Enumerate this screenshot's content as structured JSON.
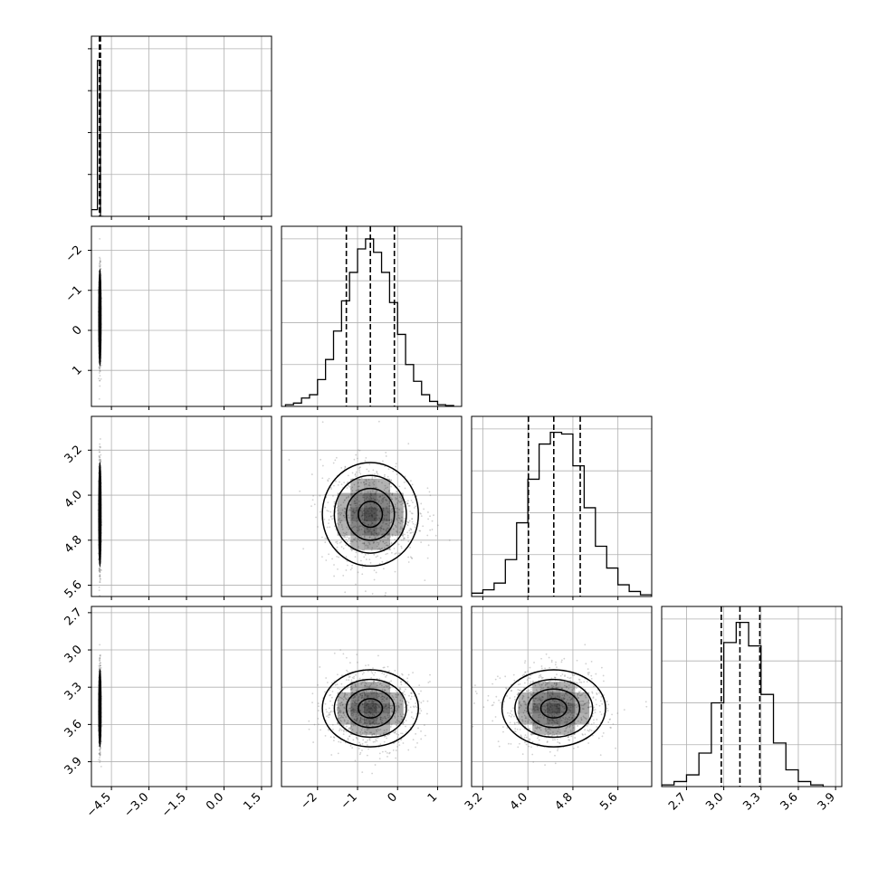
{
  "chart_data": {
    "type": "corner",
    "x_labels": [],
    "x_ticks": [
      [
        "−4.5",
        "−3.0",
        "−1.5",
        "0.0",
        "1.5"
      ],
      [
        "−2",
        "−1",
        "0",
        "1"
      ],
      [
        "3.2",
        "4.0",
        "4.8",
        "5.6"
      ],
      [
        "2.7",
        "3.0",
        "3.3",
        "3.6",
        "3.9"
      ]
    ],
    "y_ticks": [
      [],
      [
        "1",
        "0",
        "−1",
        "−2"
      ],
      [
        "5.6",
        "4.8",
        "4.0",
        "3.2"
      ],
      [
        "3.9",
        "3.6",
        "3.3",
        "3.0",
        "2.7"
      ]
    ],
    "x_tick_values": [
      [
        -4.5,
        -3.0,
        -1.5,
        0.0,
        1.5
      ],
      [
        -2,
        -1,
        0,
        1
      ],
      [
        3.2,
        4.0,
        4.8,
        5.6
      ],
      [
        2.7,
        3.0,
        3.3,
        3.6,
        3.9
      ]
    ],
    "ranges": [
      [
        -5.3,
        1.9
      ],
      [
        -2.9,
        1.6
      ],
      [
        3.0,
        6.2
      ],
      [
        2.5,
        3.95
      ]
    ],
    "parameters": [
      {
        "name": "",
        "quantiles": [
          -4.98,
          -4.96,
          -4.94
        ]
      },
      {
        "name": "",
        "quantiles": [
          -1.28,
          -0.68,
          -0.08
        ]
      },
      {
        "name": "",
        "quantiles": [
          4.01,
          4.46,
          4.93
        ]
      },
      {
        "name": "",
        "quantiles": [
          2.98,
          3.13,
          3.29
        ]
      }
    ],
    "marginals": [
      {
        "bin_edges": [
          -5.3,
          -5.06,
          -4.94,
          -4.82
        ],
        "heights": [
          0.04,
          0.93,
          0.0
        ],
        "scale": "relative to peak"
      },
      {
        "bin_edges": [
          -2.8,
          -2.6,
          -2.4,
          -2.2,
          -2.0,
          -1.8,
          -1.6,
          -1.4,
          -1.2,
          -1.0,
          -0.8,
          -0.6,
          -0.4,
          -0.2,
          0.0,
          0.2,
          0.4,
          0.6,
          0.8,
          1.0,
          1.2,
          1.4
        ],
        "heights": [
          0.01,
          0.02,
          0.05,
          0.07,
          0.16,
          0.28,
          0.45,
          0.63,
          0.8,
          0.94,
          1.0,
          0.92,
          0.8,
          0.62,
          0.43,
          0.25,
          0.15,
          0.07,
          0.03,
          0.01,
          0.005
        ],
        "scale": "relative to peak"
      },
      {
        "bin_edges": [
          3.0,
          3.2,
          3.4,
          3.6,
          3.8,
          4.0,
          4.2,
          4.4,
          4.6,
          4.8,
          5.0,
          5.2,
          5.4,
          5.6,
          5.8,
          6.0,
          6.2
        ],
        "heights": [
          0.02,
          0.04,
          0.08,
          0.22,
          0.44,
          0.7,
          0.91,
          0.98,
          0.97,
          0.78,
          0.53,
          0.3,
          0.17,
          0.07,
          0.03,
          0.01
        ],
        "scale": "relative to peak"
      },
      {
        "bin_edges": [
          2.5,
          2.6,
          2.7,
          2.8,
          2.9,
          3.0,
          3.1,
          3.2,
          3.3,
          3.4,
          3.5,
          3.6,
          3.7,
          3.8
        ],
        "heights": [
          0.01,
          0.03,
          0.07,
          0.2,
          0.5,
          0.86,
          0.98,
          0.84,
          0.55,
          0.26,
          0.1,
          0.03,
          0.01
        ],
        "scale": "relative to peak"
      }
    ],
    "scatter_noise": "gray sample points around each 2D contour",
    "contours": "four nested density contours per 2D panel",
    "grid": true,
    "colors": {
      "lines": "#000000",
      "grid": "#b0b0b0",
      "density": "#000000"
    }
  }
}
